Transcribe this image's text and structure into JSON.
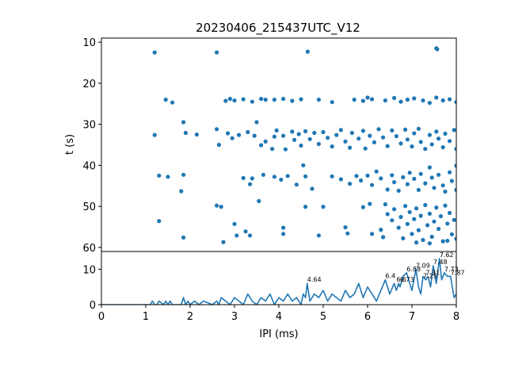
{
  "chart_data": [
    {
      "type": "scatter",
      "title": "20230406_215437UTC_V12",
      "ylabel": "t (s)",
      "xlim": [
        0,
        8
      ],
      "ylim": [
        61,
        9
      ],
      "y_inverted": true,
      "yticks": [
        "10",
        "20",
        "30",
        "40",
        "50",
        "60"
      ],
      "color": "#1f77b4",
      "points": [
        [
          1.2,
          12.5
        ],
        [
          2.6,
          12.5
        ],
        [
          4.65,
          12.3
        ],
        [
          7.55,
          11.5
        ],
        [
          7.57,
          11.7
        ],
        [
          1.45,
          24
        ],
        [
          1.6,
          24.7
        ],
        [
          2.8,
          24.3
        ],
        [
          2.9,
          23.8
        ],
        [
          3.0,
          24.2
        ],
        [
          3.2,
          23.9
        ],
        [
          3.4,
          24.5
        ],
        [
          3.6,
          23.8
        ],
        [
          3.7,
          24
        ],
        [
          3.9,
          24
        ],
        [
          4.1,
          23.8
        ],
        [
          4.3,
          24.3
        ],
        [
          4.5,
          23.9
        ],
        [
          4.9,
          24
        ],
        [
          5.2,
          24.6
        ],
        [
          5.7,
          24
        ],
        [
          5.9,
          24.3
        ],
        [
          6.0,
          23.5
        ],
        [
          6.1,
          23.9
        ],
        [
          6.4,
          24.2
        ],
        [
          6.6,
          23.6
        ],
        [
          6.75,
          24.5
        ],
        [
          6.9,
          24
        ],
        [
          7.05,
          23.7
        ],
        [
          7.25,
          24.2
        ],
        [
          7.4,
          24.8
        ],
        [
          7.55,
          23.5
        ],
        [
          7.7,
          24.2
        ],
        [
          7.85,
          23.9
        ],
        [
          8.0,
          24.6
        ],
        [
          1.85,
          29.5
        ],
        [
          1.2,
          32.6
        ],
        [
          1.9,
          32.1
        ],
        [
          2.15,
          32.5
        ],
        [
          2.6,
          31.2
        ],
        [
          2.65,
          35
        ],
        [
          2.85,
          32.2
        ],
        [
          2.95,
          33.4
        ],
        [
          3.1,
          32.6
        ],
        [
          3.3,
          31.9
        ],
        [
          3.45,
          32.8
        ],
        [
          3.5,
          29.5
        ],
        [
          3.6,
          35.1
        ],
        [
          3.7,
          34.2
        ],
        [
          3.85,
          36
        ],
        [
          3.9,
          33
        ],
        [
          3.95,
          31.5
        ],
        [
          4.1,
          32.8
        ],
        [
          4.15,
          36.1
        ],
        [
          4.3,
          31.8
        ],
        [
          4.35,
          33.8
        ],
        [
          4.45,
          32.4
        ],
        [
          4.5,
          35.2
        ],
        [
          4.6,
          31.7
        ],
        [
          4.7,
          33.6
        ],
        [
          4.8,
          32.1
        ],
        [
          4.9,
          34.8
        ],
        [
          5.0,
          31.9
        ],
        [
          5.1,
          33.3
        ],
        [
          5.2,
          35.4
        ],
        [
          5.3,
          32.6
        ],
        [
          5.4,
          31.4
        ],
        [
          5.5,
          34.2
        ],
        [
          5.6,
          35.7
        ],
        [
          5.65,
          32.1
        ],
        [
          5.8,
          33.5
        ],
        [
          5.9,
          31.6
        ],
        [
          5.95,
          35.9
        ],
        [
          6.05,
          32.8
        ],
        [
          6.15,
          34.4
        ],
        [
          6.25,
          31.2
        ],
        [
          6.35,
          33.2
        ],
        [
          6.45,
          35.3
        ],
        [
          6.55,
          31.5
        ],
        [
          6.65,
          32.9
        ],
        [
          6.75,
          34.7
        ],
        [
          6.85,
          31.3
        ],
        [
          6.9,
          33.7
        ],
        [
          7.0,
          35.4
        ],
        [
          7.05,
          32.2
        ],
        [
          7.15,
          31.1
        ],
        [
          7.2,
          34.3
        ],
        [
          7.3,
          36
        ],
        [
          7.4,
          32.6
        ],
        [
          7.45,
          34.9
        ],
        [
          7.55,
          31.8
        ],
        [
          7.6,
          33.5
        ],
        [
          7.7,
          35.6
        ],
        [
          7.75,
          32.3
        ],
        [
          7.85,
          34.1
        ],
        [
          7.95,
          31.4
        ],
        [
          8.0,
          36
        ],
        [
          1.3,
          42.5
        ],
        [
          1.5,
          42.8
        ],
        [
          1.85,
          42.3
        ],
        [
          1.8,
          46.3
        ],
        [
          3.2,
          43.1
        ],
        [
          3.35,
          44.6
        ],
        [
          3.4,
          43.2
        ],
        [
          3.65,
          42.3
        ],
        [
          3.9,
          42.8
        ],
        [
          4.05,
          43.5
        ],
        [
          4.2,
          42.6
        ],
        [
          4.4,
          44.7
        ],
        [
          4.55,
          40
        ],
        [
          4.6,
          42.7
        ],
        [
          4.75,
          45.7
        ],
        [
          5.2,
          42.7
        ],
        [
          5.4,
          43.4
        ],
        [
          5.6,
          44.5
        ],
        [
          5.75,
          42.6
        ],
        [
          5.85,
          43.7
        ],
        [
          6.0,
          42.5
        ],
        [
          6.1,
          44.8
        ],
        [
          6.2,
          41.5
        ],
        [
          6.3,
          43.2
        ],
        [
          6.45,
          45.9
        ],
        [
          6.55,
          42.4
        ],
        [
          6.6,
          44.1
        ],
        [
          6.7,
          46.2
        ],
        [
          6.8,
          42.9
        ],
        [
          6.9,
          44.6
        ],
        [
          6.95,
          41.8
        ],
        [
          7.05,
          43.3
        ],
        [
          7.15,
          46
        ],
        [
          7.2,
          42.1
        ],
        [
          7.3,
          44.4
        ],
        [
          7.4,
          40.5
        ],
        [
          7.45,
          43
        ],
        [
          7.5,
          45.5
        ],
        [
          7.6,
          42.3
        ],
        [
          7.7,
          44.9
        ],
        [
          7.75,
          46.4
        ],
        [
          7.85,
          41.7
        ],
        [
          7.9,
          43.8
        ],
        [
          8.0,
          40.1
        ],
        [
          8.0,
          46
        ],
        [
          1.3,
          53.6
        ],
        [
          1.85,
          57.6
        ],
        [
          2.6,
          49.8
        ],
        [
          2.7,
          50.1
        ],
        [
          2.75,
          58.7
        ],
        [
          3.0,
          54.3
        ],
        [
          3.05,
          57.1
        ],
        [
          3.25,
          56.1
        ],
        [
          3.35,
          57.1
        ],
        [
          3.55,
          48.7
        ],
        [
          4.1,
          55.2
        ],
        [
          4.1,
          56.7
        ],
        [
          4.6,
          50.1
        ],
        [
          4.9,
          57.1
        ],
        [
          5.0,
          50.1
        ],
        [
          5.5,
          55.1
        ],
        [
          5.55,
          56.6
        ],
        [
          5.9,
          50.2
        ],
        [
          6.05,
          49.4
        ],
        [
          6.1,
          56.7
        ],
        [
          6.3,
          55.7
        ],
        [
          6.35,
          57.5
        ],
        [
          6.4,
          49.5
        ],
        [
          6.45,
          51.9
        ],
        [
          6.55,
          53.4
        ],
        [
          6.6,
          50.7
        ],
        [
          6.7,
          55.2
        ],
        [
          6.75,
          52.6
        ],
        [
          6.8,
          57.8
        ],
        [
          6.85,
          49.9
        ],
        [
          6.9,
          54.3
        ],
        [
          6.95,
          51.4
        ],
        [
          7.0,
          56.7
        ],
        [
          7.05,
          53.1
        ],
        [
          7.1,
          50.5
        ],
        [
          7.15,
          55.8
        ],
        [
          7.2,
          52.3
        ],
        [
          7.25,
          58.2
        ],
        [
          7.3,
          49.7
        ],
        [
          7.35,
          54.6
        ],
        [
          7.4,
          51.8
        ],
        [
          7.45,
          57.4
        ],
        [
          7.5,
          53.7
        ],
        [
          7.55,
          50.3
        ],
        [
          7.6,
          55.5
        ],
        [
          7.65,
          52.4
        ],
        [
          7.7,
          58.5
        ],
        [
          7.75,
          49.8
        ],
        [
          7.8,
          54.2
        ],
        [
          7.85,
          51.6
        ],
        [
          7.9,
          56.8
        ],
        [
          7.95,
          53.3
        ],
        [
          8.0,
          57.9
        ],
        [
          7.1,
          58.8
        ],
        [
          7.4,
          59
        ],
        [
          7.8,
          58.4
        ]
      ]
    },
    {
      "type": "line",
      "xlabel": "IPI (ms)",
      "xlim": [
        0,
        8
      ],
      "ylim": [
        0,
        15
      ],
      "xticks": [
        "0",
        "1",
        "2",
        "3",
        "4",
        "5",
        "6",
        "7",
        "8"
      ],
      "yticks": [
        "0",
        "10"
      ],
      "color": "#1f77b4",
      "series": [
        {
          "x": [
            0,
            1.1,
            1.15,
            1.2,
            1.25,
            1.3,
            1.4,
            1.45,
            1.5,
            1.55,
            1.6,
            1.8,
            1.85,
            1.9,
            1.95,
            2.0,
            2.1,
            2.2,
            2.3,
            2.5,
            2.6,
            2.65,
            2.7,
            2.8,
            2.9,
            3.0,
            3.1,
            3.2,
            3.3,
            3.4,
            3.5,
            3.6,
            3.7,
            3.8,
            3.9,
            4.0,
            4.1,
            4.2,
            4.3,
            4.4,
            4.5,
            4.55,
            4.6,
            4.64,
            4.7,
            4.8,
            4.9,
            5.0,
            5.1,
            5.2,
            5.3,
            5.4,
            5.5,
            5.6,
            5.7,
            5.8,
            5.9,
            6.0,
            6.1,
            6.2,
            6.3,
            6.4,
            6.45,
            6.5,
            6.6,
            6.65,
            6.7,
            6.73,
            6.8,
            6.88,
            6.95,
            7.0,
            7.09,
            7.15,
            7.2,
            7.25,
            7.31,
            7.36,
            7.42,
            7.48,
            7.55,
            7.62,
            7.67,
            7.73,
            7.8,
            7.87,
            7.95,
            8.0
          ],
          "y": [
            0,
            0,
            1,
            0,
            0,
            1,
            0,
            1,
            0,
            1,
            0,
            0,
            2,
            0,
            1,
            0,
            1,
            0,
            1,
            0,
            1,
            0,
            2,
            1,
            0,
            2,
            1,
            0,
            3,
            1,
            0,
            2,
            1,
            3,
            0,
            2,
            1,
            3,
            1,
            2,
            0,
            3,
            2,
            6,
            1,
            3,
            2,
            4,
            1,
            3,
            2,
            1,
            4,
            2,
            3,
            6,
            2,
            5,
            3,
            1,
            4,
            7,
            5,
            3,
            6,
            4,
            6,
            5,
            8,
            9,
            6,
            4,
            10,
            5,
            3,
            8,
            7,
            8,
            5,
            11,
            6,
            13,
            7,
            9,
            8,
            8,
            2,
            3
          ]
        }
      ],
      "annotations": [
        {
          "x": 4.64,
          "y": 6,
          "text": "4.64"
        },
        {
          "x": 6.4,
          "y": 7,
          "text": "6.4"
        },
        {
          "x": 6.65,
          "y": 6,
          "text": "6.6"
        },
        {
          "x": 6.73,
          "y": 6,
          "text": "6.73"
        },
        {
          "x": 6.88,
          "y": 9,
          "text": "6.88"
        },
        {
          "x": 7.09,
          "y": 10,
          "text": "7.09"
        },
        {
          "x": 7.25,
          "y": 7,
          "text": "7.25"
        },
        {
          "x": 7.31,
          "y": 8,
          "text": "7.31"
        },
        {
          "x": 7.48,
          "y": 11,
          "text": "7.48"
        },
        {
          "x": 7.62,
          "y": 13,
          "text": "7.62"
        },
        {
          "x": 7.73,
          "y": 9,
          "text": "7.73"
        },
        {
          "x": 7.87,
          "y": 8,
          "text": "7.87"
        }
      ]
    }
  ]
}
